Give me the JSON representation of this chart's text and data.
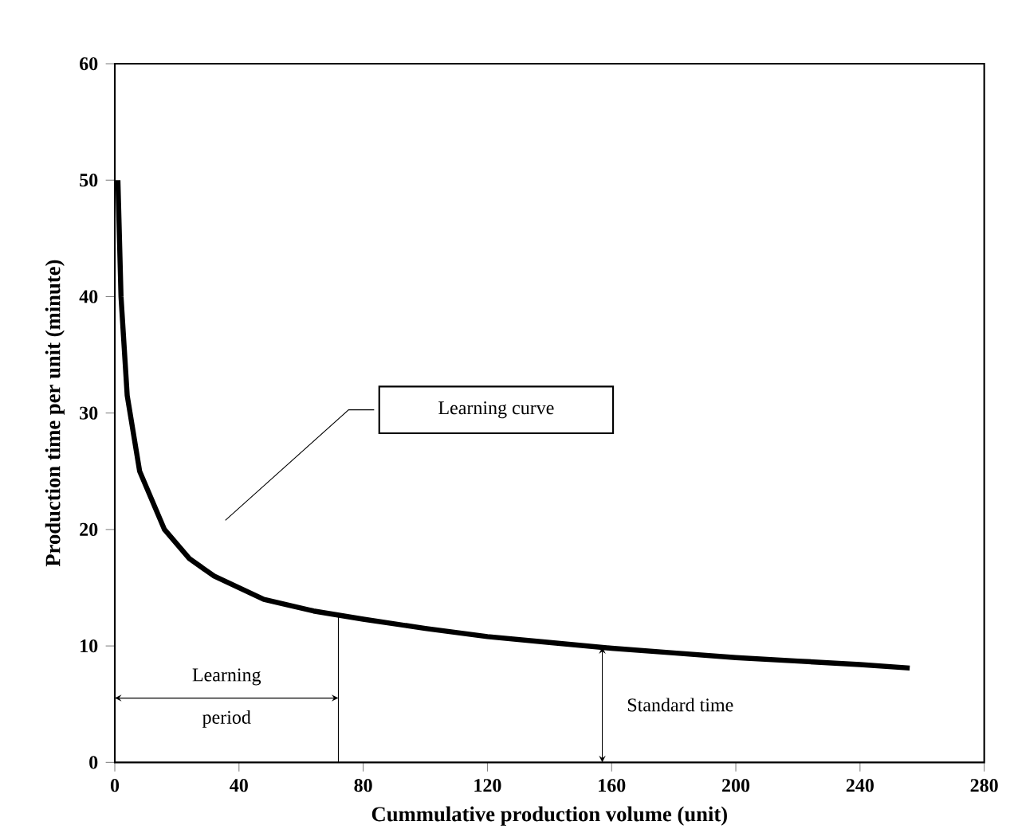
{
  "chart_data": {
    "type": "line",
    "xlabel": "Cummulative production volume (unit)",
    "ylabel": "Production time  per unit (minute)",
    "x": [
      1,
      2,
      4,
      8,
      16,
      24,
      32,
      48,
      64,
      80,
      100,
      120,
      140,
      160,
      180,
      200,
      220,
      240,
      256
    ],
    "series": [
      {
        "color": "#000000",
        "values": [
          50,
          40,
          31.5,
          25,
          20,
          17.5,
          16,
          14,
          13,
          12.3,
          11.5,
          10.8,
          10.3,
          9.8,
          9.4,
          9,
          8.7,
          8.4,
          8.1
        ]
      }
    ],
    "xlim": [
      0,
      280
    ],
    "ylim": [
      0,
      60
    ],
    "xticks": [
      0,
      40,
      80,
      120,
      160,
      200,
      240,
      280
    ],
    "yticks": [
      0,
      10,
      20,
      30,
      40,
      50,
      60
    ],
    "grid": false,
    "marker": "none",
    "line_style": "solid",
    "ref_lines": [
      {
        "axis": "x",
        "value": 72
      }
    ],
    "annotations": [
      "Learning curve",
      "Learning period",
      {
        "text": "Standard time",
        "x": 157,
        "y": 9.9
      }
    ]
  }
}
